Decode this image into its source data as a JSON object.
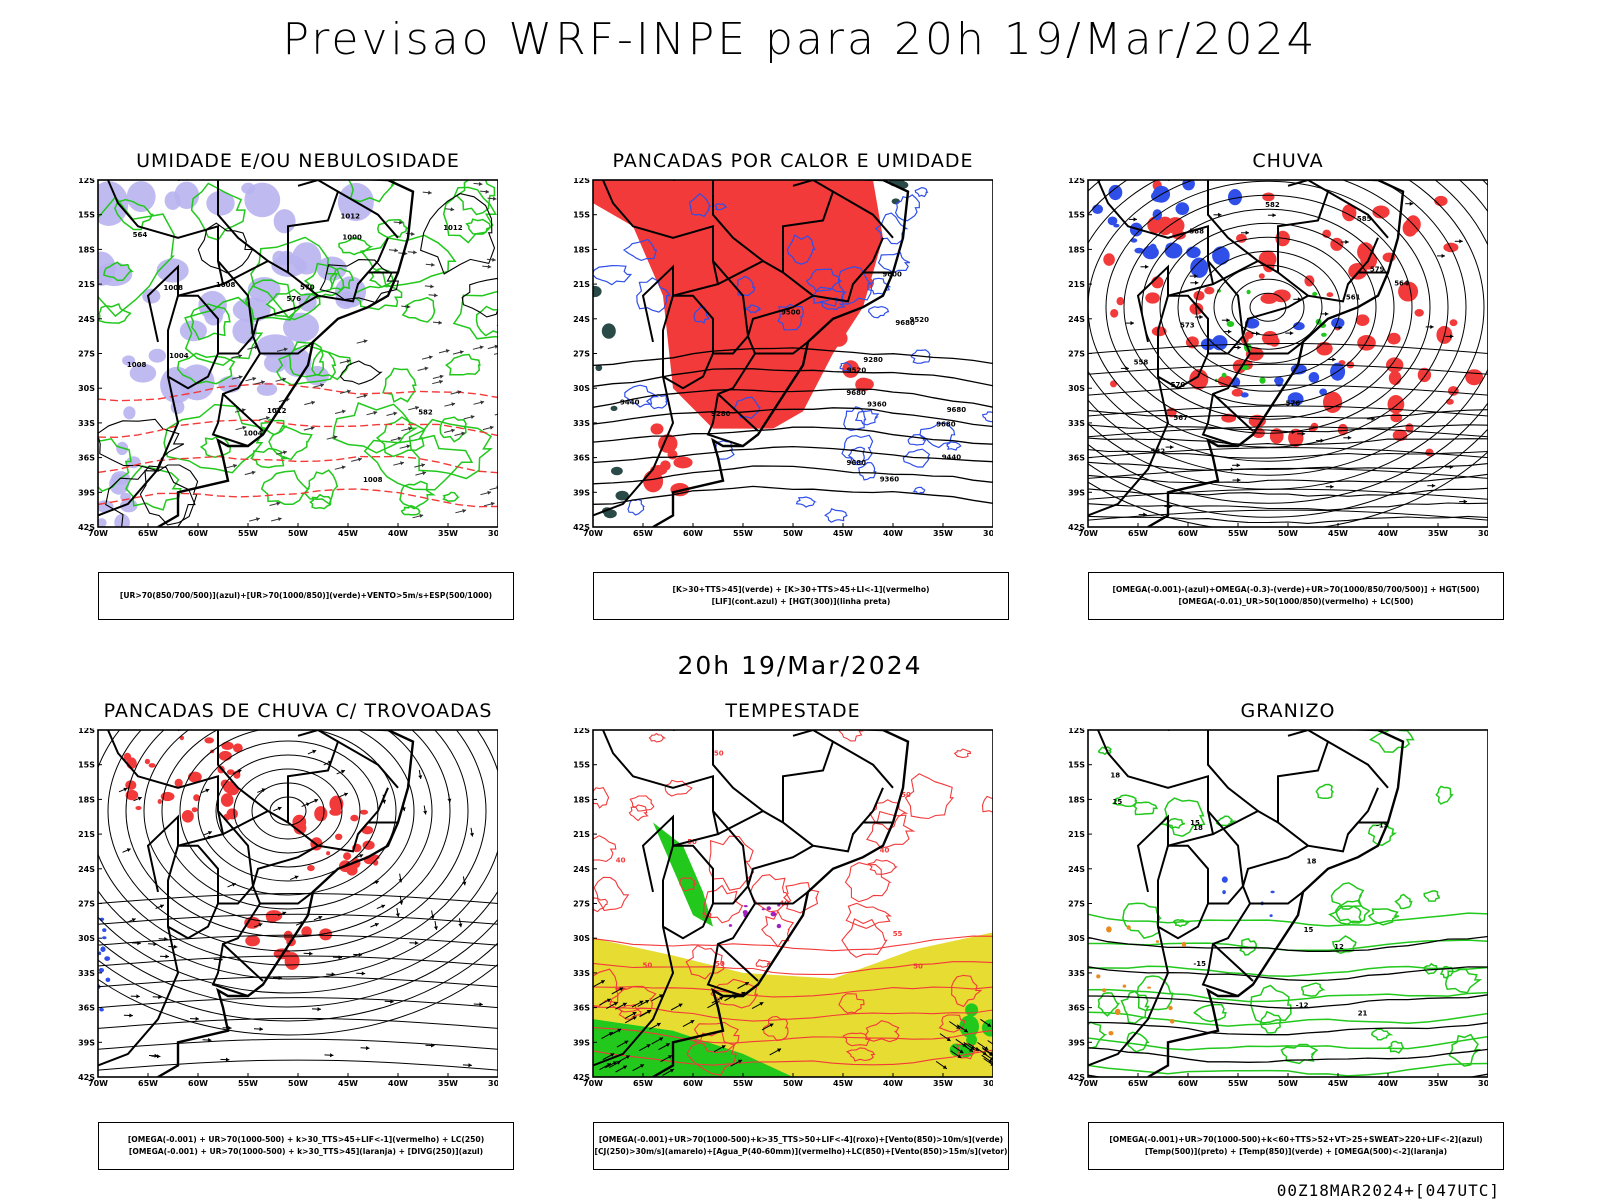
{
  "header": {
    "title": "Previsao WRF-INPE  para 20h 19/Mar/2024",
    "mid_date": "20h 19/Mar/2024"
  },
  "footer": {
    "run_info": "00Z18MAR2024+[047UTC]"
  },
  "axes": {
    "lat_labels": [
      "12S",
      "15S",
      "18S",
      "21S",
      "24S",
      "27S",
      "30S",
      "33S",
      "36S",
      "39S",
      "42S"
    ],
    "lon_labels": [
      "70W",
      "65W",
      "60W",
      "55W",
      "50W",
      "45W",
      "40W",
      "35W",
      "30W"
    ]
  },
  "colors": {
    "red": "#f23a3a",
    "green": "#22c81c",
    "blue": "#2f4fe8",
    "lavender": "#b8b4f0",
    "yellow": "#e6dc32",
    "orange": "#e88a1e",
    "purple": "#a020c0",
    "darkteal": "#2a4a48"
  },
  "panels": [
    {
      "id": "umidade",
      "title": "UMIDADE E/OU NEBULOSIDADE",
      "legend": [
        "[UR>70(850/700/500)](azul)+[UR>70(1000/850)](verde)+VENTO>5m/s+ESP(500/1000)"
      ],
      "labels": [
        "1008",
        "1008",
        "1004",
        "1000",
        "1012",
        "1012",
        "1008",
        "576",
        "570",
        "564",
        "582",
        "1012",
        "1008",
        "1004"
      ]
    },
    {
      "id": "pancadas",
      "title": "PANCADAS POR CALOR E UMIDADE",
      "legend": [
        "[K>30+TTS>45](verde) + [K>30+TTS>45+LI<-1](vermelho)",
        "[LIF](cont.azul) + [HGT(300)](linha preta)"
      ],
      "labels": [
        "9680",
        "9680",
        "9680",
        "9680",
        "9680",
        "9600",
        "9520",
        "9500",
        "9440",
        "9360",
        "9280",
        "9520",
        "9440",
        "9360",
        "9280"
      ]
    },
    {
      "id": "chuva",
      "title": "CHUVA",
      "legend": [
        "[OMEGA(-0.001)-(azul)+OMEGA(-0.3)-(verde)+UR>70(1000/850/700/500)] + HGT(500)",
        "[OMEGA(-0.01)_UR>50(1000/850)(vermelho) + LC(500)"
      ],
      "labels": [
        "582",
        "585",
        "588",
        "579",
        "576",
        "573",
        "570",
        "567",
        "564",
        "561",
        "558",
        "582"
      ]
    },
    {
      "id": "trovoadas",
      "title": "PANCADAS DE CHUVA C/ TROVOADAS",
      "legend": [
        "[OMEGA(-0.001) + UR>70(1000-500) + k>30_TTS>45+LIF<-1](vermelho) + LC(250)",
        "[OMEGA(-0.001) + UR>70(1000-500) + k>30_TTS>45](laranja) + [DIVG(250)](azul)"
      ],
      "labels": []
    },
    {
      "id": "tempestade",
      "title": "TEMPESTADE",
      "legend": [
        "[OMEGA(-0.001)+UR>70(1000-500)+k>35_TTS>50+LIF<-4](roxo)+[Vento(850)>10m/s](verde)",
        "[CJ(250)>30m/s](amarelo)+[Agua_P(40-60mm)](vermelho)+LC(850)+[Vento(850)>15m/s](vetor)"
      ],
      "labels": [
        "50",
        "50",
        "50",
        "55",
        "40",
        "50",
        "50",
        "40",
        "50",
        "40",
        "50"
      ]
    },
    {
      "id": "granizo",
      "title": "GRANIZO",
      "legend": [
        "[OMEGA(-0.001)+UR>70(1000-500)+k<60+TTS>52+VT>25+SWEAT>220+LIF<-2](azul)",
        "[Temp(500)](preto) + [Temp(850)](verde) + [OMEGA(500)<-2](laranja)"
      ],
      "labels": [
        "15",
        "18",
        "21",
        "18",
        "15",
        "-12",
        "-15",
        "-15",
        "18",
        "15",
        "12"
      ]
    }
  ]
}
